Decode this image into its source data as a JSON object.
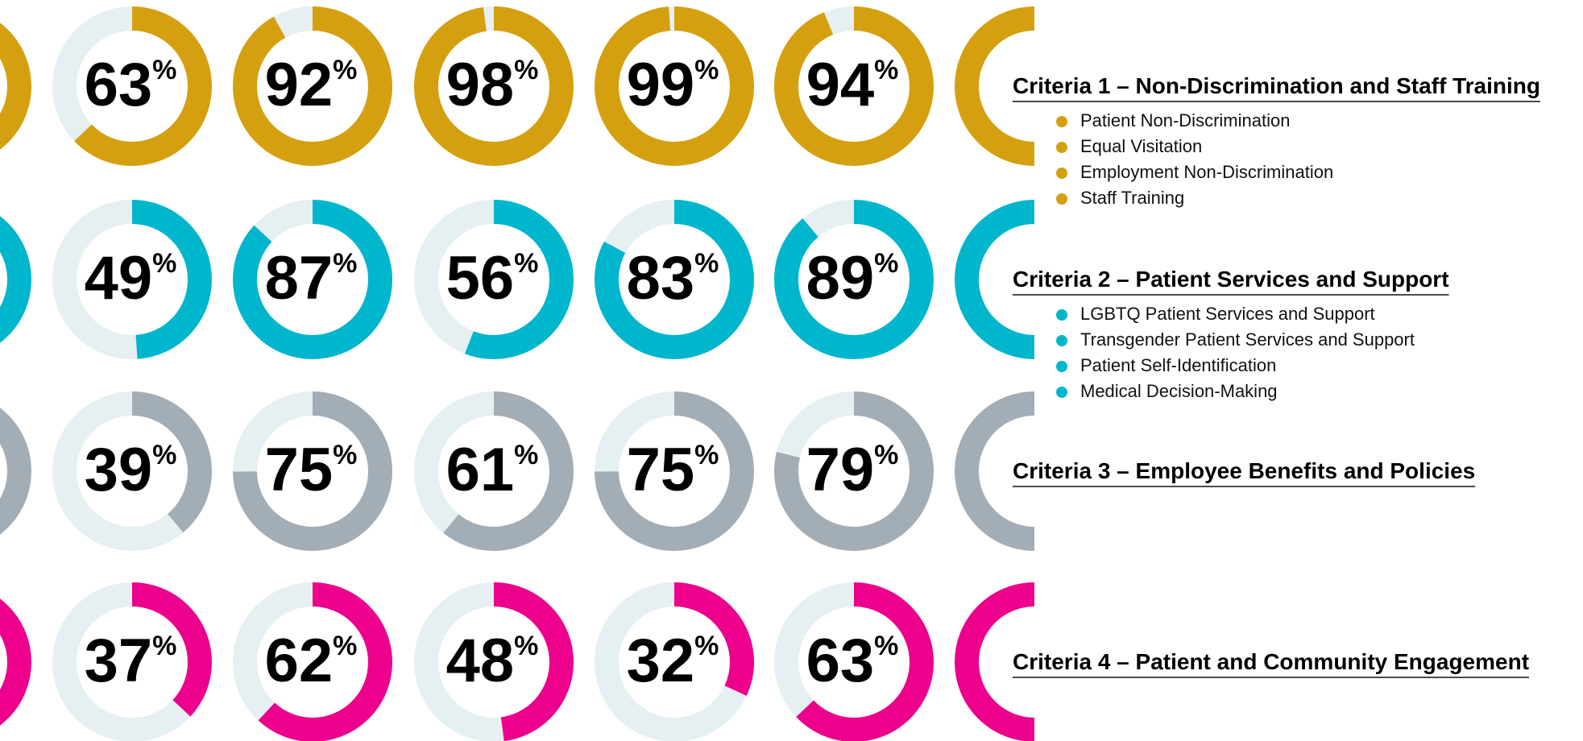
{
  "chart_data": {
    "type": "donut-grid",
    "percent_sign": "%",
    "track_color": "#e6eff1",
    "rows": [
      {
        "title": "Criteria 1 – Non-Discrimination and Staff Training",
        "color": "#d5a010",
        "values": [
          63,
          92,
          98,
          99,
          94
        ],
        "items": [
          "Patient Non-Discrimination",
          "Equal Visitation",
          "Employment Non-Discrimination",
          "Staff Training"
        ]
      },
      {
        "title": "Criteria 2 – Patient Services and Support",
        "color": "#00b6cd",
        "values": [
          49,
          87,
          56,
          83,
          89
        ],
        "items": [
          "LGBTQ Patient Services and Support",
          "Transgender Patient Services and Support",
          "Patient Self-Identification",
          "Medical Decision-Making"
        ]
      },
      {
        "title": "Criteria 3 – Employee Benefits and Policies",
        "color": "#a3adb5",
        "values": [
          39,
          75,
          61,
          75,
          79
        ],
        "items": []
      },
      {
        "title": "Criteria 4 – Patient and Community Engagement",
        "color": "#ec008c",
        "values": [
          37,
          62,
          48,
          32,
          63
        ],
        "items": []
      }
    ]
  }
}
